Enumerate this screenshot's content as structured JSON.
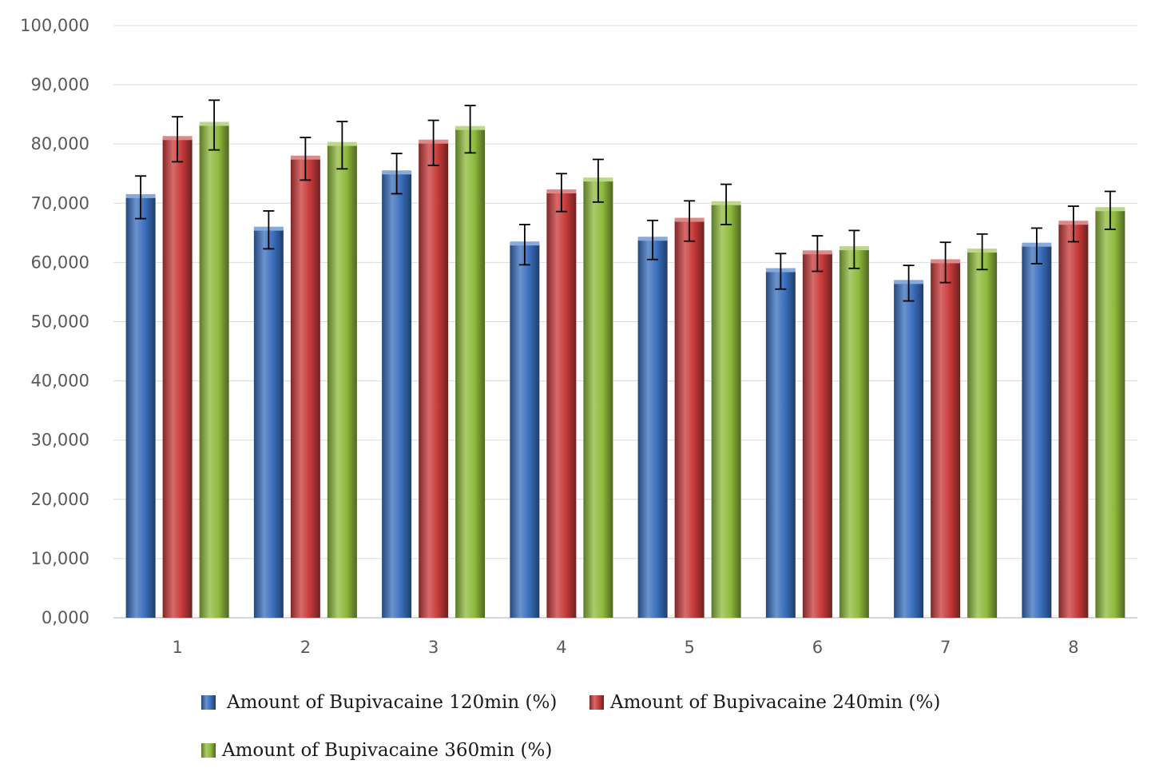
{
  "chart_data": {
    "type": "bar",
    "title": "",
    "xlabel": "",
    "ylabel": "",
    "ylim": [
      0,
      100
    ],
    "yticks": [
      "0,000",
      "10,000",
      "20,000",
      "30,000",
      "40,000",
      "50,000",
      "60,000",
      "70,000",
      "80,000",
      "90,000",
      "100,000"
    ],
    "categories": [
      "1",
      "2",
      "3",
      "4",
      "5",
      "6",
      "7",
      "8"
    ],
    "grid": true,
    "legend_position": "bottom",
    "error_bars": true,
    "series": [
      {
        "name": "Amount of Bupivacaine 120min (%)",
        "color": "#3a6fbe",
        "values": [
          71.0,
          65.5,
          75.0,
          63.0,
          63.8,
          58.5,
          56.5,
          62.8
        ],
        "errors": [
          3.6,
          3.2,
          3.4,
          3.4,
          3.3,
          3.0,
          3.0,
          3.0
        ]
      },
      {
        "name": "Amount of Bupivacaine 240min (%)",
        "color": "#c83a3a",
        "values": [
          80.8,
          77.5,
          80.2,
          71.8,
          67.0,
          61.5,
          60.0,
          66.5
        ],
        "errors": [
          3.8,
          3.6,
          3.8,
          3.2,
          3.4,
          3.0,
          3.4,
          3.0
        ]
      },
      {
        "name": "Amount of Bupivacaine 360min (%)",
        "color": "#8fba3c",
        "values": [
          83.2,
          79.8,
          82.5,
          73.8,
          69.8,
          62.2,
          61.8,
          68.8
        ],
        "errors": [
          4.2,
          4.0,
          4.0,
          3.6,
          3.4,
          3.2,
          3.0,
          3.2
        ]
      }
    ]
  }
}
